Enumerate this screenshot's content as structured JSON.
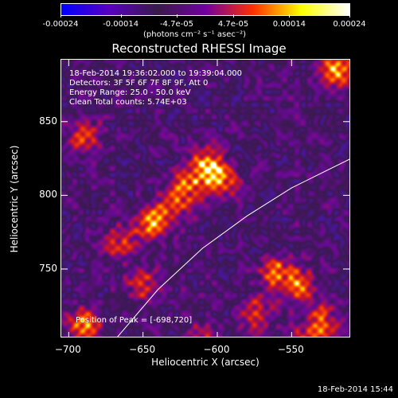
{
  "colorbar": {
    "tick_labels": [
      "-0.00024",
      "-0.00014",
      "-4.7e-05",
      "4.7e-05",
      "0.00014",
      "0.00024"
    ],
    "tick_values": [
      -0.00024,
      -0.00014,
      -4.7e-05,
      4.7e-05,
      0.00014,
      0.00024
    ],
    "units": "(photons cm⁻² s⁻¹ asec⁻²)",
    "colors": [
      "#0000ff",
      "#5a00c0",
      "#3a1a4a",
      "#7000a0",
      "#ff3000",
      "#ffff00",
      "#ffffff"
    ]
  },
  "chart_data": {
    "type": "heatmap",
    "title": "Reconstructed RHESSI Image",
    "xlabel": "Heliocentric X (arcsec)",
    "ylabel": "Heliocentric Y (arcsec)",
    "xlim": [
      -705,
      -510
    ],
    "ylim": [
      703,
      892
    ],
    "x_ticks": [
      -700,
      -650,
      -600,
      -550
    ],
    "y_ticks": [
      750,
      800,
      850
    ],
    "x_tick_labels": [
      "−700",
      "−650",
      "−600",
      "−550"
    ],
    "y_tick_labels": [
      "750",
      "800",
      "850"
    ],
    "annotations": [
      "18-Feb-2014 19:36:02.000 to 19:39:04.000",
      "Detectors: 3F 5F 6F 7F 8F 9F, Att 0",
      "Energy Range: 25.0 - 50.0 keV",
      "Clean    Total counts: 5.74E+03"
    ],
    "peak_label": "Position of Peak = [-698,720]",
    "peak_position": [
      -698,
      720
    ],
    "limb_curve": {
      "x": [
        -668,
        -640,
        -610,
        -580,
        -550,
        -510
      ],
      "y": [
        703,
        736,
        764,
        786,
        805,
        825
      ]
    },
    "sources": [
      {
        "x": -607,
        "y": 820,
        "intensity": 1.0
      },
      {
        "x": -620,
        "y": 808,
        "intensity": 0.8
      },
      {
        "x": -596,
        "y": 810,
        "intensity": 0.7
      },
      {
        "x": -630,
        "y": 792,
        "intensity": 0.6
      },
      {
        "x": -645,
        "y": 782,
        "intensity": 0.85
      },
      {
        "x": -665,
        "y": 768,
        "intensity": 0.55
      },
      {
        "x": -560,
        "y": 748,
        "intensity": 0.8
      },
      {
        "x": -545,
        "y": 740,
        "intensity": 0.75
      },
      {
        "x": -530,
        "y": 715,
        "intensity": 0.7
      },
      {
        "x": -575,
        "y": 720,
        "intensity": 0.65
      },
      {
        "x": -520,
        "y": 885,
        "intensity": 1.0
      },
      {
        "x": -690,
        "y": 840,
        "intensity": 0.6
      },
      {
        "x": -690,
        "y": 712,
        "intensity": 0.9
      },
      {
        "x": -650,
        "y": 740,
        "intensity": 0.55
      },
      {
        "x": -612,
        "y": 702,
        "intensity": 0.5
      },
      {
        "x": -540,
        "y": 700,
        "intensity": 0.6
      }
    ]
  },
  "footer": {
    "timestamp": "18-Feb-2014 15:44"
  }
}
